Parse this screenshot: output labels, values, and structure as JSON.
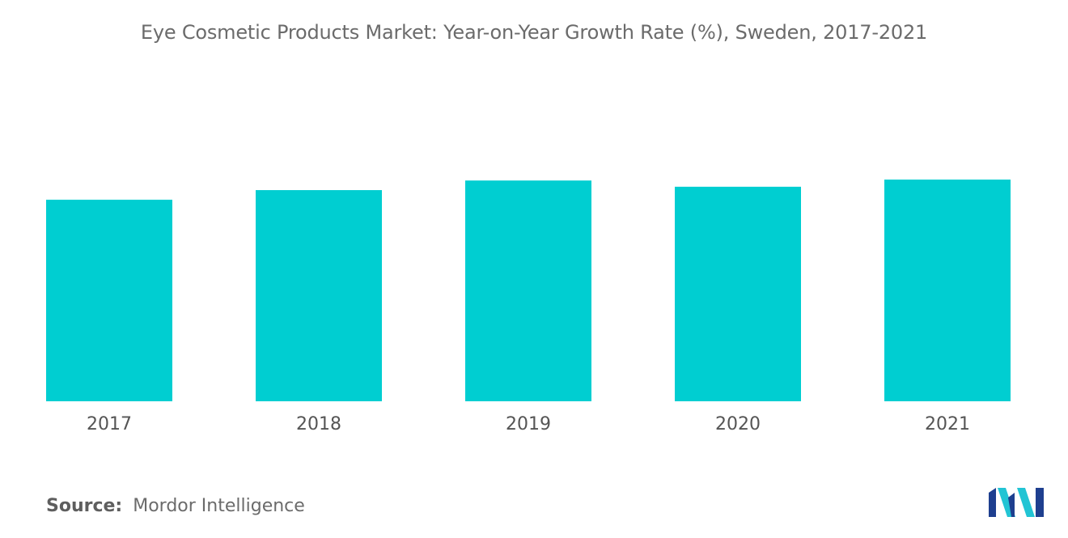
{
  "title": "Eye Cosmetic Products Market: Year-on-Year Growth Rate (%), Sweden, 2017-2021",
  "source": {
    "label": "Source:",
    "name": "Mordor Intelligence"
  },
  "logo": {
    "icon": "mordor-intelligence-logo-icon",
    "colors": [
      "#1e3f8f",
      "#22c4d4"
    ]
  },
  "chart_data": {
    "type": "bar",
    "title": "Eye Cosmetic Products Market: Year-on-Year Growth Rate (%), Sweden, 2017-2021",
    "categories": [
      "2017",
      "2018",
      "2019",
      "2020",
      "2021"
    ],
    "values": [
      4.2,
      4.4,
      4.6,
      4.47,
      4.62
    ],
    "xlabel": "",
    "ylabel": "",
    "ylim": [
      0,
      5.9
    ],
    "bar_color": "#00ced1",
    "grid": false,
    "legend": "none"
  }
}
